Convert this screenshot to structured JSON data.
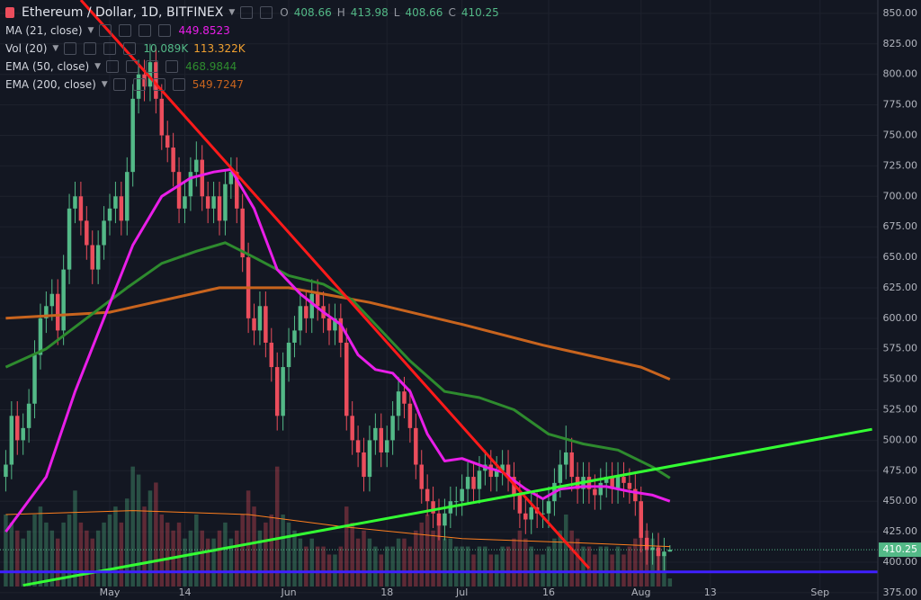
{
  "chart_data": {
    "type": "candlestick",
    "title": "Ethereum / Dollar, 1D, BITFINEX",
    "ohlc_labels": [
      "O",
      "H",
      "L",
      "C"
    ],
    "up_color": "#53b987",
    "down_color": "#eb4d5c",
    "xlim": [
      "04-12",
      "09-11"
    ],
    "xticks": [
      {
        "value": "05-01",
        "label": "May"
      },
      {
        "value": "05-14",
        "label": "14"
      },
      {
        "value": "06-01",
        "label": "Jun"
      },
      {
        "value": "06-18",
        "label": "18"
      },
      {
        "value": "07-01",
        "label": "Jul"
      },
      {
        "value": "07-16",
        "label": "16"
      },
      {
        "value": "08-01",
        "label": "Aug"
      },
      {
        "value": "08-13",
        "label": "13"
      },
      {
        "value": "09-01",
        "label": "Sep"
      }
    ],
    "ylim": [
      369,
      861
    ],
    "yticks": [
      {
        "value": 375,
        "label": "375.00"
      },
      {
        "value": 400,
        "label": "400.00"
      },
      {
        "value": 425,
        "label": "425.00"
      },
      {
        "value": 450,
        "label": "450.00"
      },
      {
        "value": 475,
        "label": "475.00"
      },
      {
        "value": 500,
        "label": "500.00"
      },
      {
        "value": 525,
        "label": "525.00"
      },
      {
        "value": 550,
        "label": "550.00"
      },
      {
        "value": 575,
        "label": "575.00"
      },
      {
        "value": 600,
        "label": "600.00"
      },
      {
        "value": 625,
        "label": "625.00"
      },
      {
        "value": 650,
        "label": "650.00"
      },
      {
        "value": 675,
        "label": "675.00"
      },
      {
        "value": 700,
        "label": "700.00"
      },
      {
        "value": 725,
        "label": "725.00"
      },
      {
        "value": 750,
        "label": "750.00"
      },
      {
        "value": 775,
        "label": "775.00"
      },
      {
        "value": 800,
        "label": "800.00"
      },
      {
        "value": 825,
        "label": "825.00"
      },
      {
        "value": 850,
        "label": "850.00"
      }
    ],
    "grid": true,
    "candles": {
      "x": [
        "04-13",
        "04-14",
        "04-15",
        "04-16",
        "04-17",
        "04-18",
        "04-19",
        "04-20",
        "04-21",
        "04-22",
        "04-23",
        "04-24",
        "04-25",
        "04-26",
        "04-27",
        "04-28",
        "04-29",
        "04-30",
        "05-01",
        "05-02",
        "05-03",
        "05-04",
        "05-05",
        "05-06",
        "05-07",
        "05-08",
        "05-09",
        "05-10",
        "05-11",
        "05-12",
        "05-13",
        "05-14",
        "05-15",
        "05-16",
        "05-17",
        "05-18",
        "05-19",
        "05-20",
        "05-21",
        "05-22",
        "05-23",
        "05-24",
        "05-25",
        "05-26",
        "05-27",
        "05-28",
        "05-29",
        "05-30",
        "05-31",
        "06-01",
        "06-02",
        "06-03",
        "06-04",
        "06-05",
        "06-06",
        "06-07",
        "06-08",
        "06-09",
        "06-10",
        "06-11",
        "06-12",
        "06-13",
        "06-14",
        "06-15",
        "06-16",
        "06-17",
        "06-18",
        "06-19",
        "06-20",
        "06-21",
        "06-22",
        "06-23",
        "06-24",
        "06-25",
        "06-26",
        "06-27",
        "06-28",
        "06-29",
        "06-30",
        "07-01",
        "07-02",
        "07-03",
        "07-04",
        "07-05",
        "07-06",
        "07-07",
        "07-08",
        "07-09",
        "07-10",
        "07-11",
        "07-12",
        "07-13",
        "07-14",
        "07-15",
        "07-16",
        "07-17",
        "07-18",
        "07-19",
        "07-20",
        "07-21",
        "07-22",
        "07-23",
        "07-24",
        "07-25",
        "07-26",
        "07-27",
        "07-28",
        "07-29",
        "07-30",
        "07-31",
        "08-01",
        "08-02",
        "08-03",
        "08-04",
        "08-05",
        "08-06"
      ],
      "open": [
        470,
        480,
        520,
        500,
        510,
        530,
        570,
        600,
        610,
        620,
        590,
        640,
        690,
        700,
        680,
        660,
        640,
        660,
        680,
        690,
        700,
        680,
        720,
        780,
        800,
        790,
        810,
        780,
        750,
        740,
        720,
        690,
        700,
        720,
        730,
        700,
        690,
        700,
        680,
        710,
        720,
        690,
        650,
        600,
        590,
        610,
        580,
        560,
        520,
        560,
        580,
        590,
        610,
        600,
        620,
        610,
        600,
        590,
        600,
        580,
        520,
        500,
        490,
        470,
        500,
        510,
        490,
        500,
        520,
        540,
        530,
        510,
        480,
        460,
        450,
        440,
        430,
        440,
        450,
        450,
        460,
        470,
        460,
        475,
        480,
        470,
        475,
        480,
        470,
        455,
        440,
        435,
        445,
        440,
        440,
        450,
        465,
        480,
        490,
        470,
        460,
        470,
        460,
        455,
        465,
        470,
        460,
        470,
        465,
        460,
        450,
        420,
        410,
        412,
        405,
        408.66
      ],
      "high": [
        492,
        532,
        532,
        522,
        542,
        582,
        612,
        622,
        632,
        632,
        652,
        702,
        712,
        712,
        692,
        672,
        672,
        692,
        702,
        712,
        712,
        732,
        792,
        812,
        812,
        825,
        822,
        792,
        762,
        752,
        732,
        712,
        732,
        745,
        742,
        712,
        712,
        712,
        722,
        732,
        732,
        702,
        662,
        612,
        622,
        622,
        592,
        572,
        572,
        592,
        602,
        622,
        622,
        632,
        632,
        622,
        612,
        612,
        612,
        592,
        532,
        512,
        502,
        512,
        522,
        522,
        512,
        532,
        552,
        552,
        542,
        522,
        492,
        472,
        462,
        452,
        452,
        462,
        462,
        472,
        482,
        482,
        487,
        492,
        492,
        487,
        492,
        492,
        482,
        467,
        452,
        457,
        457,
        452,
        462,
        477,
        492,
        512,
        502,
        482,
        482,
        482,
        472,
        477,
        482,
        482,
        482,
        482,
        477,
        472,
        462,
        432,
        424,
        424,
        420,
        413.98
      ],
      "low": [
        458,
        468,
        488,
        488,
        498,
        518,
        558,
        588,
        598,
        578,
        578,
        628,
        678,
        668,
        648,
        628,
        628,
        648,
        668,
        678,
        668,
        668,
        708,
        768,
        778,
        778,
        768,
        738,
        728,
        708,
        678,
        678,
        688,
        708,
        688,
        678,
        678,
        668,
        668,
        698,
        678,
        638,
        588,
        578,
        578,
        568,
        548,
        508,
        508,
        548,
        568,
        578,
        588,
        588,
        598,
        588,
        578,
        578,
        568,
        508,
        488,
        478,
        458,
        458,
        488,
        478,
        478,
        488,
        508,
        518,
        498,
        468,
        448,
        438,
        428,
        418,
        418,
        428,
        438,
        438,
        448,
        448,
        448,
        463,
        458,
        458,
        463,
        458,
        443,
        428,
        423,
        423,
        428,
        428,
        428,
        438,
        453,
        468,
        458,
        448,
        448,
        448,
        443,
        443,
        453,
        448,
        448,
        453,
        448,
        438,
        408,
        398,
        398,
        393,
        393,
        408.66
      ],
      "close": [
        480,
        520,
        500,
        510,
        530,
        570,
        600,
        610,
        620,
        590,
        640,
        690,
        700,
        680,
        660,
        640,
        660,
        680,
        690,
        700,
        680,
        720,
        780,
        800,
        790,
        810,
        780,
        750,
        740,
        720,
        690,
        700,
        720,
        730,
        700,
        690,
        700,
        680,
        710,
        720,
        690,
        650,
        600,
        590,
        610,
        580,
        560,
        520,
        560,
        580,
        590,
        610,
        600,
        620,
        610,
        600,
        590,
        600,
        580,
        520,
        500,
        490,
        470,
        500,
        510,
        490,
        500,
        520,
        540,
        530,
        510,
        480,
        460,
        450,
        440,
        430,
        440,
        450,
        450,
        460,
        470,
        460,
        475,
        480,
        470,
        475,
        480,
        470,
        455,
        440,
        435,
        445,
        440,
        440,
        450,
        465,
        480,
        490,
        470,
        460,
        470,
        460,
        455,
        465,
        470,
        460,
        470,
        465,
        460,
        450,
        420,
        410,
        412,
        405,
        408.66,
        410.25
      ]
    },
    "volume": {
      "ylim": [
        0,
        360
      ],
      "values": [
        90,
        80,
        70,
        60,
        70,
        90,
        100,
        80,
        70,
        60,
        80,
        90,
        120,
        80,
        70,
        60,
        70,
        80,
        90,
        100,
        80,
        110,
        150,
        140,
        100,
        120,
        130,
        90,
        80,
        70,
        80,
        60,
        70,
        90,
        70,
        60,
        60,
        70,
        80,
        60,
        70,
        90,
        120,
        100,
        70,
        80,
        90,
        150,
        90,
        80,
        70,
        60,
        50,
        60,
        50,
        50,
        40,
        40,
        50,
        100,
        80,
        60,
        70,
        60,
        50,
        40,
        50,
        50,
        60,
        60,
        50,
        70,
        80,
        90,
        70,
        80,
        60,
        60,
        50,
        50,
        50,
        40,
        50,
        50,
        40,
        40,
        50,
        50,
        60,
        70,
        60,
        50,
        40,
        40,
        50,
        60,
        70,
        90,
        70,
        60,
        50,
        50,
        40,
        50,
        50,
        40,
        50,
        40,
        50,
        60,
        90,
        70,
        60,
        50,
        40,
        10.089
      ]
    },
    "indicators": [
      {
        "name": "MA (21, close)",
        "values": [
          449.8523
        ],
        "colors": [
          "#e91ee8"
        ]
      },
      {
        "name": "Vol (20)",
        "values": [
          "10.089K",
          "113.322K"
        ],
        "colors": [
          "#53b987",
          "#f0a030"
        ]
      },
      {
        "name": "EMA (50, close)",
        "values": [
          468.9844
        ],
        "colors": [
          "#2e8b2e"
        ]
      },
      {
        "name": "EMA (200, close)",
        "values": [
          549.7247
        ],
        "colors": [
          "#c8641e"
        ]
      }
    ],
    "lines": [
      {
        "color": "#ff7f1e",
        "width": 1,
        "axis": "volume",
        "x": [
          "04-13",
          "05-05",
          "05-25",
          "06-10",
          "07-01",
          "07-20",
          "08-06"
        ],
        "values": [
          90,
          95,
          90,
          75,
          60,
          55,
          50
        ]
      },
      {
        "color": "#c8641e",
        "width": 3,
        "x": [
          "04-13",
          "05-01",
          "05-20",
          "06-01",
          "06-15",
          "07-01",
          "07-15",
          "08-01",
          "08-06"
        ],
        "values": [
          600,
          605,
          625,
          625,
          613,
          595,
          578,
          560,
          550
        ]
      },
      {
        "color": "#2e8b2e",
        "width": 3,
        "x": [
          "04-13",
          "04-20",
          "04-27",
          "05-04",
          "05-10",
          "05-16",
          "05-21",
          "05-26",
          "06-01",
          "06-07",
          "06-12",
          "06-17",
          "06-22",
          "06-28",
          "07-04",
          "07-10",
          "07-16",
          "07-22",
          "07-28",
          "08-03",
          "08-06"
        ],
        "values": [
          560,
          575,
          600,
          625,
          645,
          655,
          662,
          650,
          635,
          628,
          615,
          590,
          565,
          540,
          535,
          525,
          505,
          497,
          492,
          478,
          469
        ]
      },
      {
        "color": "#e91ee8",
        "width": 3,
        "x": [
          "04-13",
          "04-20",
          "04-25",
          "04-30",
          "05-05",
          "05-10",
          "05-15",
          "05-19",
          "05-22",
          "05-26",
          "05-30",
          "06-03",
          "06-07",
          "06-10",
          "06-13",
          "06-16",
          "06-19",
          "06-22",
          "06-25",
          "06-28",
          "07-01",
          "07-05",
          "07-08",
          "07-12",
          "07-15",
          "07-18",
          "07-22",
          "07-26",
          "07-30",
          "08-03",
          "08-06"
        ],
        "values": [
          425,
          470,
          540,
          600,
          660,
          700,
          715,
          720,
          722,
          690,
          640,
          620,
          605,
          595,
          570,
          558,
          555,
          540,
          505,
          483,
          485,
          478,
          474,
          460,
          452,
          460,
          462,
          462,
          458,
          455,
          450
        ]
      },
      {
        "color": "#ff1a1a",
        "width": 3,
        "x": [
          "04-26",
          "07-23"
        ],
        "values": [
          861,
          395
        ]
      },
      {
        "color": "#33ff33",
        "width": 3,
        "x": [
          "04-16",
          "09-10"
        ],
        "values": [
          381,
          509
        ]
      },
      {
        "color": "#3f1fff",
        "width": 3,
        "x": [
          "04-12",
          "09-11"
        ],
        "values": [
          392,
          392
        ]
      }
    ]
  }
}
